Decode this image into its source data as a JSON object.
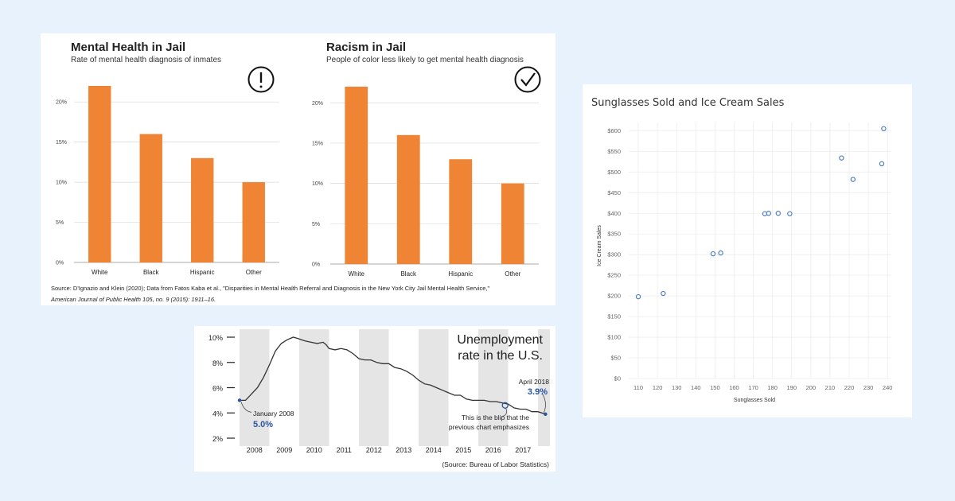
{
  "jail_panel": {
    "source_line1": "Source: D'Ignazio and Klein (2020); Data from Fatos Kaba et al., \"Disparities in Mental Health Referral and Diagnosis in the New York City Jail Mental Health Service,\"",
    "source_line2": "American Journal of Public Health 105, no. 9 (2015): 1911–16.",
    "left_icon": "exclamation-circle-icon",
    "right_icon": "checkmark-circle-icon"
  },
  "unemployment_panel": {
    "title_line1": "Unemployment",
    "title_line2": "rate in the U.S.",
    "annotation_start_label": "January 2008",
    "annotation_start_value": "5.0%",
    "annotation_end_label": "April 2018",
    "annotation_end_value": "3.9%",
    "blip_line1": "This is the blip that the",
    "blip_line2": "previous chart emphasizes",
    "source": "(Source: Bureau of Labor Statistics)"
  },
  "colors": {
    "bar": "#ee8434",
    "line": "#333333",
    "shade": "#e5e5e5",
    "annotation_blue": "#2a55a0",
    "scatter_point": "#4e7fbf"
  },
  "chart_data": [
    {
      "type": "bar",
      "title": "Mental Health in Jail",
      "subtitle": "Rate of mental health diagnosis of inmates",
      "categories": [
        "White",
        "Black",
        "Hispanic",
        "Other"
      ],
      "values": [
        22,
        16,
        13,
        10
      ],
      "ylim": [
        0,
        22
      ],
      "yticks": [
        0,
        5,
        10,
        15,
        20
      ],
      "ytick_labels": [
        "0%",
        "5%",
        "10%",
        "15%",
        "20%"
      ],
      "grid": true
    },
    {
      "type": "bar",
      "title": "Racism in Jail",
      "subtitle": "People of color less likely to get mental health diagnosis",
      "categories": [
        "White",
        "Black",
        "Hispanic",
        "Other"
      ],
      "values": [
        22,
        16,
        13,
        10
      ],
      "ylim": [
        0,
        22
      ],
      "yticks": [
        0,
        5,
        10,
        15,
        20
      ],
      "ytick_labels": [
        "0%",
        "5%",
        "10%",
        "15%",
        "20%"
      ],
      "grid": true
    },
    {
      "type": "line",
      "title": "Unemployment rate in the U.S.",
      "xlim": [
        2008,
        2018.4
      ],
      "ylim": [
        2,
        10
      ],
      "x_tick_labels": [
        "2008",
        "2009",
        "2010",
        "2011",
        "2012",
        "2013",
        "2014",
        "2015",
        "2016",
        "2017"
      ],
      "yticks": [
        2,
        4,
        6,
        8,
        10
      ],
      "ytick_labels": [
        "2%",
        "4%",
        "6%",
        "8%",
        "10%"
      ],
      "shaded_years": [
        2008,
        2010,
        2012,
        2014,
        2016,
        2018
      ],
      "x": [
        2008.0,
        2008.2,
        2008.4,
        2008.6,
        2008.8,
        2009.0,
        2009.2,
        2009.4,
        2009.6,
        2009.8,
        2009.95,
        2010.2,
        2010.4,
        2010.6,
        2010.8,
        2010.9,
        2011.0,
        2011.2,
        2011.4,
        2011.6,
        2011.8,
        2012.0,
        2012.2,
        2012.4,
        2012.6,
        2012.8,
        2013.0,
        2013.2,
        2013.4,
        2013.6,
        2013.8,
        2014.0,
        2014.2,
        2014.4,
        2014.6,
        2014.8,
        2015.0,
        2015.2,
        2015.4,
        2015.6,
        2015.8,
        2016.0,
        2016.2,
        2016.4,
        2016.6,
        2016.8,
        2017.0,
        2017.2,
        2017.4,
        2017.6,
        2017.8,
        2018.0,
        2018.25
      ],
      "y": [
        5.0,
        5.0,
        5.5,
        6.0,
        6.8,
        7.8,
        8.9,
        9.5,
        9.8,
        10.0,
        9.9,
        9.7,
        9.6,
        9.5,
        9.6,
        9.4,
        9.1,
        9.0,
        9.1,
        9.0,
        8.7,
        8.3,
        8.2,
        8.2,
        8.0,
        7.9,
        7.9,
        7.6,
        7.5,
        7.3,
        7.0,
        6.6,
        6.3,
        6.2,
        6.0,
        5.8,
        5.6,
        5.4,
        5.4,
        5.1,
        5.0,
        5.0,
        5.0,
        4.9,
        4.9,
        4.8,
        4.7,
        4.4,
        4.3,
        4.3,
        4.1,
        4.1,
        3.9
      ],
      "blip_x": 2016.9,
      "blip_y": 4.6
    },
    {
      "type": "scatter",
      "title": "Sunglasses Sold and Ice Cream Sales",
      "xlabel": "Sunglasses Sold",
      "ylabel": "Ice Cream Sales",
      "xlim": [
        105,
        242
      ],
      "ylim": [
        0,
        620
      ],
      "xticks": [
        110,
        120,
        130,
        140,
        150,
        160,
        170,
        180,
        190,
        200,
        210,
        220,
        230,
        240
      ],
      "yticks": [
        0,
        50,
        100,
        150,
        200,
        250,
        300,
        350,
        400,
        450,
        500,
        550,
        600
      ],
      "ytick_labels": [
        "$0",
        "$50",
        "$100",
        "$150",
        "$200",
        "$250",
        "$300",
        "$350",
        "$400",
        "$450",
        "$500",
        "$550",
        "$600"
      ],
      "grid": true,
      "x": [
        110,
        123,
        149,
        153,
        176,
        178,
        183,
        189,
        216,
        222,
        237,
        238
      ],
      "y": [
        198,
        206,
        302,
        304,
        399,
        400,
        400,
        399,
        534,
        482,
        520,
        605
      ]
    }
  ]
}
